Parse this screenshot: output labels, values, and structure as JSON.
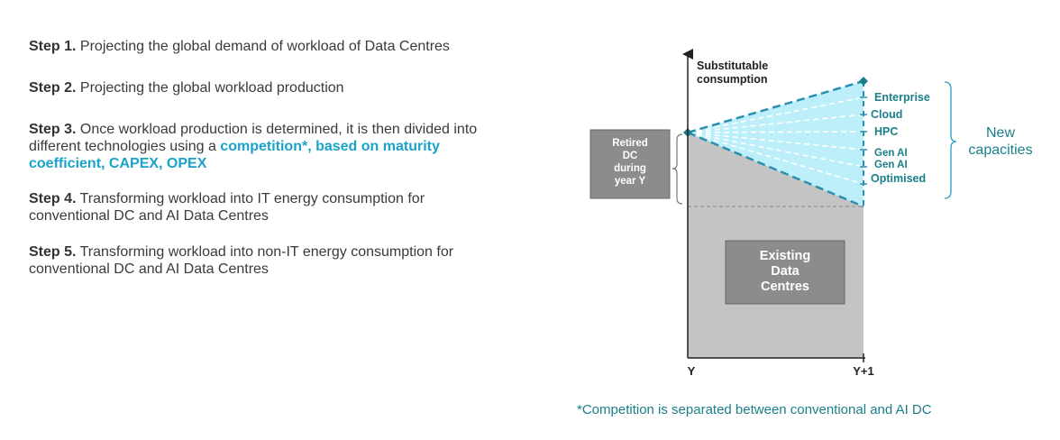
{
  "steps": [
    {
      "label": "Step 1.",
      "text": " Projecting the global demand of workload of Data Centres"
    },
    {
      "label": "Step 2.",
      "text": " Projecting the global workload production"
    },
    {
      "label": "Step 3.",
      "text_line1": " Once workload production is determined, it is then divided into",
      "text_line2": "different technologies using a ",
      "highlight": "competition*, based on maturity",
      "highlight_line2": "coefficient, CAPEX, OPEX"
    },
    {
      "label": "Step 4.",
      "text_line1": " Transforming workload into IT energy consumption for",
      "text_line2": "conventional DC and AI Data Centres"
    },
    {
      "label": "Step 5.",
      "text_line1": " Transforming workload into non-IT energy consumption for",
      "text_line2": "conventional DC  and AI Data Centres"
    }
  ],
  "diagram": {
    "y_axis_label_line1": "Substitutable",
    "y_axis_label_line2": "consumption",
    "x_start_label": "Y",
    "x_end_label": "Y+1",
    "retired_line1": "Retired",
    "retired_line2": "DC",
    "retired_line3": "during",
    "retired_line4": "year Y",
    "existing_line1": "Existing",
    "existing_line2": "Data",
    "existing_line3": "Centres",
    "technologies": [
      "Enterprise",
      "Cloud",
      "HPC",
      "Gen AI",
      "Gen AI",
      "Optimised"
    ],
    "new_capacities_line1": "New",
    "new_capacities_line2": "capacities",
    "colors": {
      "teal": "#1b7f8a",
      "dashed": "#2a8fb0",
      "fill_light": "#bdeffa",
      "grey_area": "#c4c4c4",
      "grey_box": "#8c8c8c"
    }
  },
  "footnote": "*Competition is separated between conventional and AI DC"
}
